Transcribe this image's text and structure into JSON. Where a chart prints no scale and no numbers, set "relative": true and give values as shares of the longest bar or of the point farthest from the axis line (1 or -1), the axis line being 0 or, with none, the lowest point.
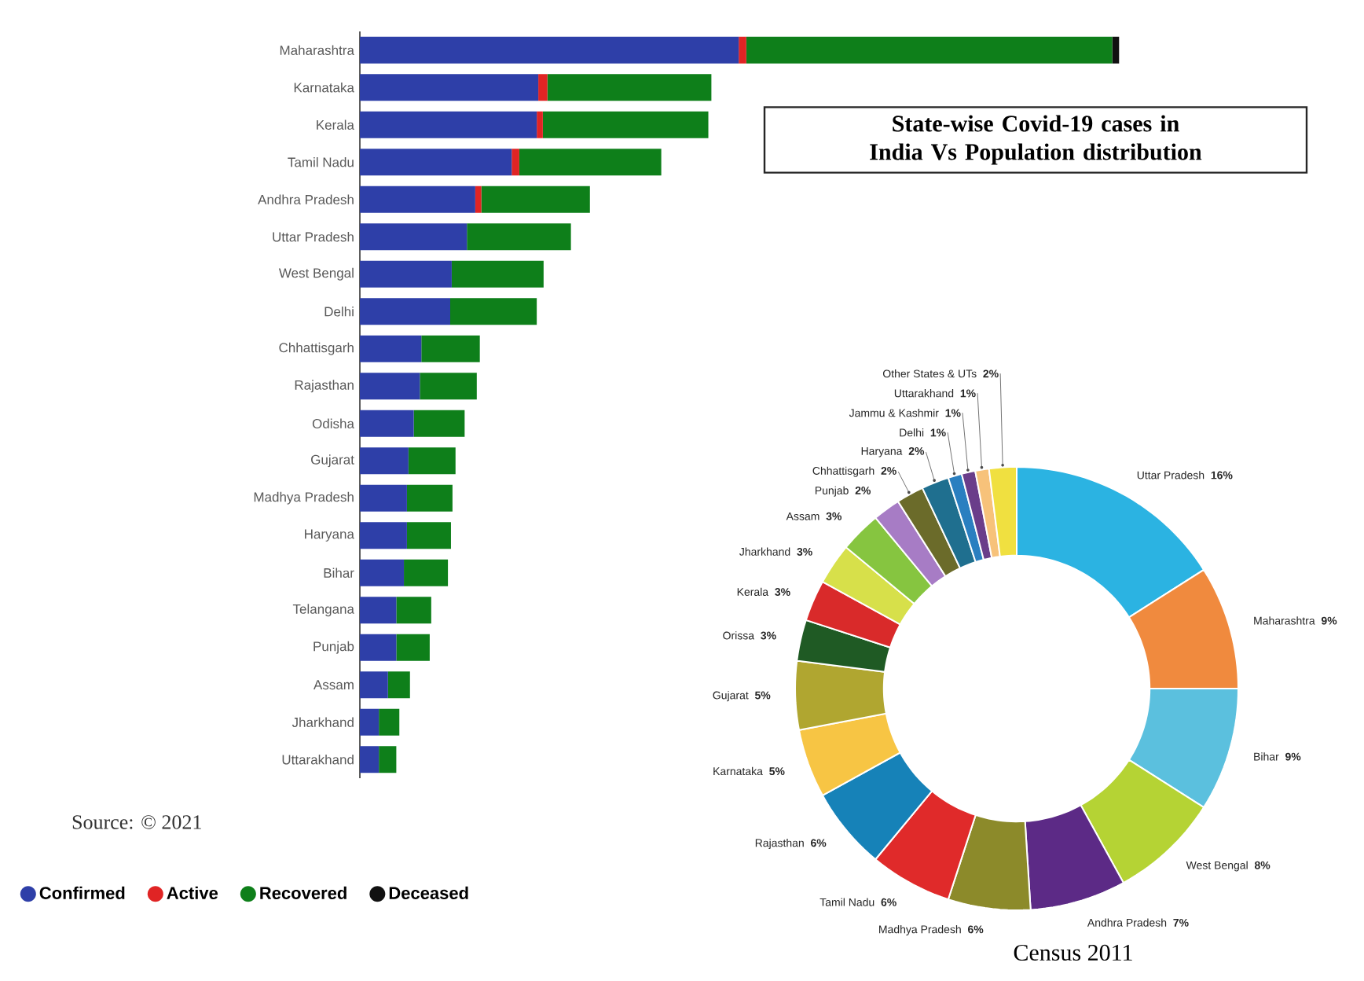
{
  "chart_data": [
    {
      "type": "bar",
      "orientation": "horizontal",
      "stacked": true,
      "relative": true,
      "title": "State-wise Covid-19 cases in India Vs Population distribution",
      "categories": [
        "Maharashtra",
        "Karnataka",
        "Kerala",
        "Tamil Nadu",
        "Andhra Pradesh",
        "Uttar Pradesh",
        "West Bengal",
        "Delhi",
        "Chhattisgarh",
        "Rajasthan",
        "Odisha",
        "Gujarat",
        "Madhya Pradesh",
        "Haryana",
        "Bihar",
        "Telangana",
        "Punjab",
        "Assam",
        "Jharkhand",
        "Uttarakhand"
      ],
      "series": [
        {
          "name": "Confirmed",
          "color": "#2e3fa8",
          "values": [
            0.499,
            0.235,
            0.233,
            0.2,
            0.152,
            0.141,
            0.121,
            0.119,
            0.081,
            0.079,
            0.071,
            0.064,
            0.062,
            0.062,
            0.058,
            0.048,
            0.048,
            0.037,
            0.025,
            0.025
          ]
        },
        {
          "name": "Active",
          "color": "#e02424",
          "values": [
            0.01,
            0.012,
            0.008,
            0.01,
            0.008,
            null,
            null,
            null,
            null,
            null,
            null,
            null,
            null,
            null,
            null,
            null,
            null,
            null,
            null,
            null
          ]
        },
        {
          "name": "Recovered",
          "color": "#0e7f1a",
          "values": [
            0.482,
            0.216,
            0.218,
            0.187,
            0.143,
            0.137,
            0.121,
            0.114,
            0.077,
            0.075,
            0.067,
            0.062,
            0.06,
            0.058,
            0.058,
            0.046,
            0.044,
            0.029,
            0.027,
            0.023
          ]
        },
        {
          "name": "Deceased",
          "color": "#111111",
          "values": [
            0.009,
            null,
            null,
            null,
            null,
            null,
            null,
            null,
            null,
            null,
            null,
            null,
            null,
            null,
            null,
            null,
            null,
            null,
            null,
            null
          ]
        }
      ],
      "legend": "bottom",
      "annotations": [
        "Source: © 2021"
      ]
    },
    {
      "type": "donut",
      "categories": [
        "Uttar Pradesh",
        "Maharashtra",
        "Bihar",
        "West Bengal",
        "Andhra Pradesh",
        "Madhya Pradesh",
        "Tamil Nadu",
        "Rajasthan",
        "Karnataka",
        "Gujarat",
        "Orissa",
        "Kerala",
        "Jharkhand",
        "Assam",
        "Punjab",
        "Chhattisgarh",
        "Haryana",
        "Delhi",
        "Jammu & Kashmir",
        "Uttarakhand",
        "Other States & UTs"
      ],
      "values": [
        16,
        9,
        9,
        8,
        7,
        6,
        6,
        6,
        5,
        5,
        3,
        3,
        3,
        3,
        2,
        2,
        2,
        1,
        1,
        1,
        2
      ],
      "value_labels": [
        "16%",
        "9%",
        "9%",
        "8%",
        "7%",
        "6%",
        "6%",
        "6%",
        "5%",
        "5%",
        "3%",
        "3%",
        "3%",
        "3%",
        "2%",
        "2%",
        "2%",
        "1%",
        "1%",
        "1%",
        "2%"
      ],
      "colors": [
        "#2bb3e2",
        "#f08a3e",
        "#5bc0de",
        "#b5d334",
        "#5c2a86",
        "#8c8a2a",
        "#e02a2a",
        "#1682b8",
        "#f7c544",
        "#b0a630",
        "#1f5a24",
        "#d92a2a",
        "#d7e04a",
        "#86c540",
        "#a77cc5",
        "#6b6b2a",
        "#1f6f8f",
        "#2a7fc0",
        "#6a3d8a",
        "#f7c27a",
        "#f0e040"
      ],
      "annotations": [
        "Census 2011"
      ]
    }
  ]
}
